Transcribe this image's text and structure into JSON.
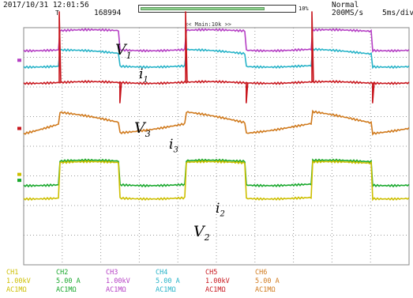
{
  "header": {
    "datetime": "2017/10/31 12:01:56",
    "record_count": "168994",
    "zoom_percent": "10%",
    "zoom_fraction": 0.8,
    "mode": "Normal",
    "sample_rate": "200MS/s",
    "extra": "5ms/div",
    "marker": "T",
    "sub_label": "<< Main:10k >>"
  },
  "trace_labels": [
    {
      "base": "V",
      "sub": "1"
    },
    {
      "base": "i",
      "sub": "1"
    },
    {
      "base": "V",
      "sub": "3"
    },
    {
      "base": "i",
      "sub": "3"
    },
    {
      "base": "i",
      "sub": "2"
    },
    {
      "base": "V",
      "sub": "2"
    }
  ],
  "channels": [
    {
      "name": "CH1",
      "scale": "1.00kV",
      "coupling": "AC1MΩ",
      "color": "#cdbf00"
    },
    {
      "name": "CH2",
      "scale": "5.00 A",
      "coupling": "AC1MΩ",
      "color": "#19a82d"
    },
    {
      "name": "CH3",
      "scale": "1.00kV",
      "coupling": "AC1MΩ",
      "color": "#b53fc4"
    },
    {
      "name": "CH4",
      "scale": "5.00 A",
      "coupling": "AC1MΩ",
      "color": "#27b3c8"
    },
    {
      "name": "CH5",
      "scale": "1.00kV",
      "coupling": "AC1MΩ",
      "color": "#c8171e"
    },
    {
      "name": "CH6",
      "scale": "5.00 A",
      "coupling": "AC1MΩ",
      "color": "#d07a1d"
    }
  ],
  "chart_data": {
    "type": "line",
    "grid": true,
    "x_divisions": 10,
    "y_divisions": 8,
    "periods": 3.05,
    "duty": 0.48,
    "series": [
      {
        "name": "CH3",
        "color": "#b53fc4",
        "kind": "square",
        "low": 3.25,
        "high": 3.9,
        "start": 0.65
      },
      {
        "name": "CH4",
        "color": "#27b3c8",
        "kind": "square_decay",
        "low": 2.6,
        "high": 3.25,
        "sag": 0.12,
        "start": 0.65
      },
      {
        "name": "CH5",
        "color": "#c8171e",
        "kind": "square_spike",
        "low": 2.15,
        "high": 2.15,
        "start": 0.65
      },
      {
        "name": "CH6",
        "color": "#d07a1d",
        "kind": "ramp",
        "low": 0.45,
        "high": 1.15,
        "start": 0.65
      },
      {
        "name": "CH2",
        "color": "#19a82d",
        "kind": "square_inv",
        "low": -1.3,
        "high": -0.5,
        "start": 0.65
      },
      {
        "name": "CH1",
        "color": "#cdbf00",
        "kind": "square_inv",
        "low": -1.75,
        "high": -0.55,
        "start": 0.65
      }
    ]
  }
}
